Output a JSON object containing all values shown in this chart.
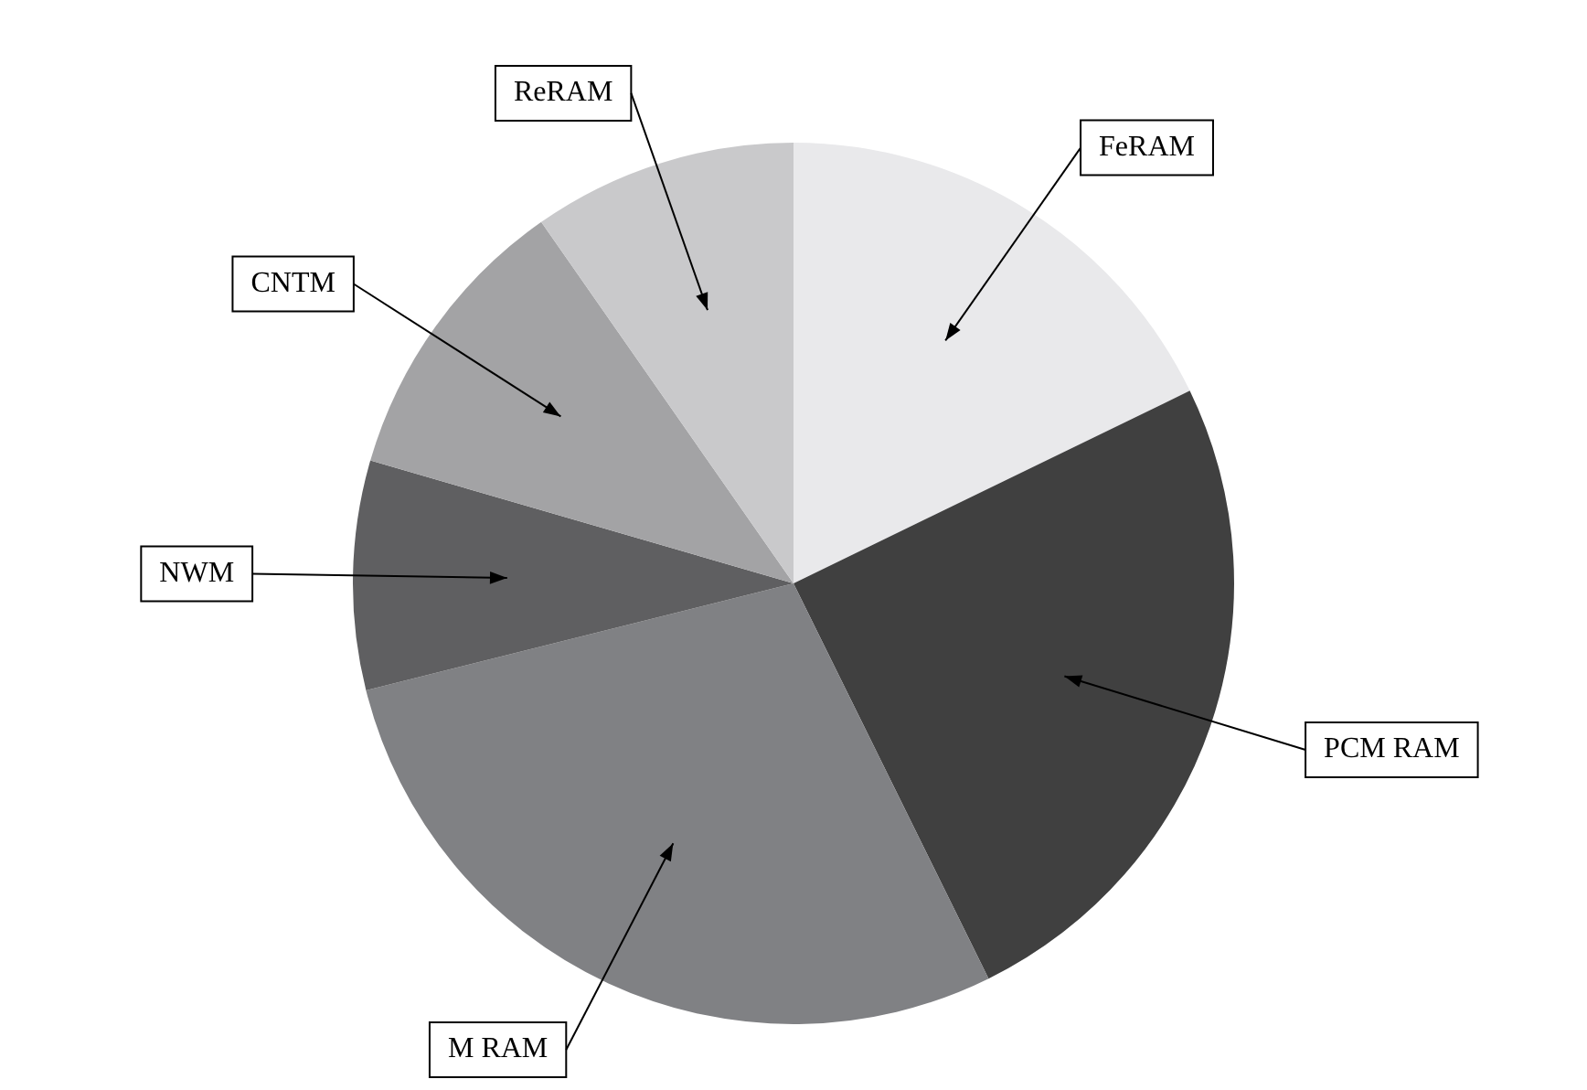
{
  "chart_data": {
    "type": "pie",
    "categories": [
      "FeRAM",
      "PCM RAM",
      "M RAM",
      "NWM",
      "CNTM",
      "ReRAM"
    ],
    "values": [
      17.8,
      24.9,
      28.4,
      8.4,
      10.8,
      9.7
    ],
    "colors": [
      "#e9e9eb",
      "#404040",
      "#808184",
      "#5f5f61",
      "#a3a3a5",
      "#c9c9cb"
    ],
    "legend": false
  }
}
